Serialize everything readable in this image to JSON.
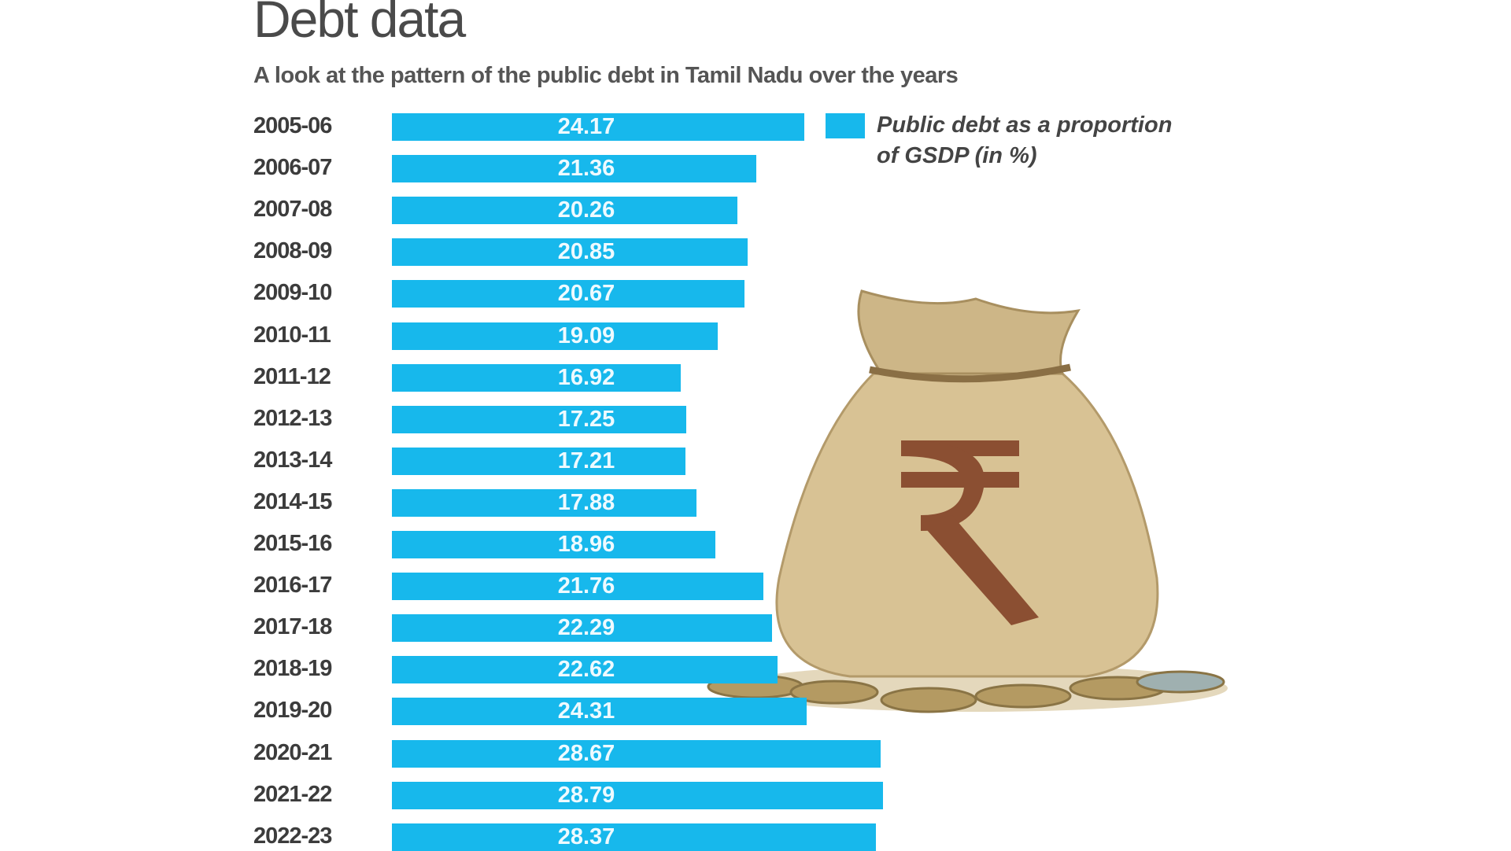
{
  "chart_data": {
    "type": "bar",
    "orientation": "horizontal",
    "title": "Debt data",
    "subtitle": "A look at the pattern of the public debt in Tamil Nadu over the years",
    "categories": [
      "2005-06",
      "2006-07",
      "2007-08",
      "2008-09",
      "2009-10",
      "2010-11",
      "2011-12",
      "2012-13",
      "2013-14",
      "2014-15",
      "2015-16",
      "2016-17",
      "2017-18",
      "2018-19",
      "2019-20",
      "2020-21",
      "2021-22",
      "2022-23"
    ],
    "series": [
      {
        "name": "Public debt as a proportion of GSDP (in %)",
        "values": [
          24.17,
          21.36,
          20.26,
          20.85,
          20.67,
          19.09,
          16.92,
          17.25,
          17.21,
          17.88,
          18.96,
          21.76,
          22.29,
          22.62,
          24.31,
          28.67,
          28.79,
          28.37
        ]
      }
    ],
    "value_labels": [
      "24.17",
      "21.36",
      "20.26",
      "20.85",
      "20.67",
      "19.09",
      "16.92",
      "17.25",
      "17.21",
      "17.88",
      "18.96",
      "21.76",
      "22.29",
      "22.62",
      "24.31",
      "28.67",
      "28.79",
      "28.37"
    ],
    "legend": {
      "label": "Public debt as a proportion of GSDP (in %)",
      "placement": "top-right"
    },
    "grid": false,
    "bar_color": "#17b8ec",
    "xlim": [
      0,
      30
    ],
    "illustration": "money-bag-with-rupee-symbol-and-coins"
  }
}
